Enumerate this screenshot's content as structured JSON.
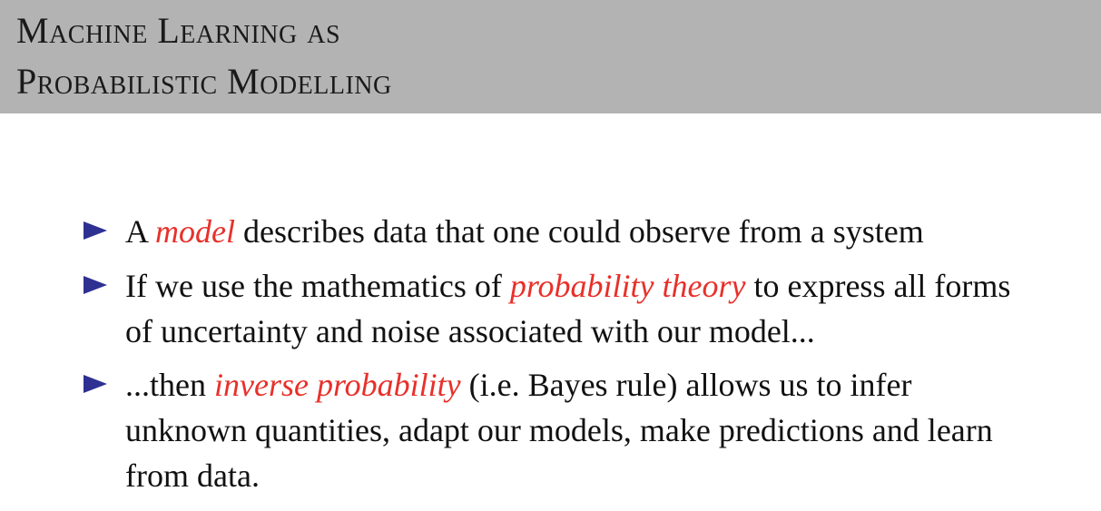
{
  "title": {
    "line1": "Machine Learning as",
    "line2": "Probabilistic Modelling"
  },
  "accent_color": "#e8302a",
  "bullet_marker_color": "#2e3192",
  "bullet_icon": "right-triangle-icon",
  "bullets": [
    {
      "pre": "A ",
      "emph": "model",
      "post": " describes data that one could observe from a system"
    },
    {
      "pre": "If we use the mathematics of ",
      "emph": "probability theory",
      "post": " to express all forms of uncertainty and noise associated with our model..."
    },
    {
      "pre": "...then ",
      "emph": "inverse probability",
      "post": " (i.e. Bayes rule) allows us to infer unknown quantities, adapt our models, make predictions and learn from data."
    }
  ]
}
